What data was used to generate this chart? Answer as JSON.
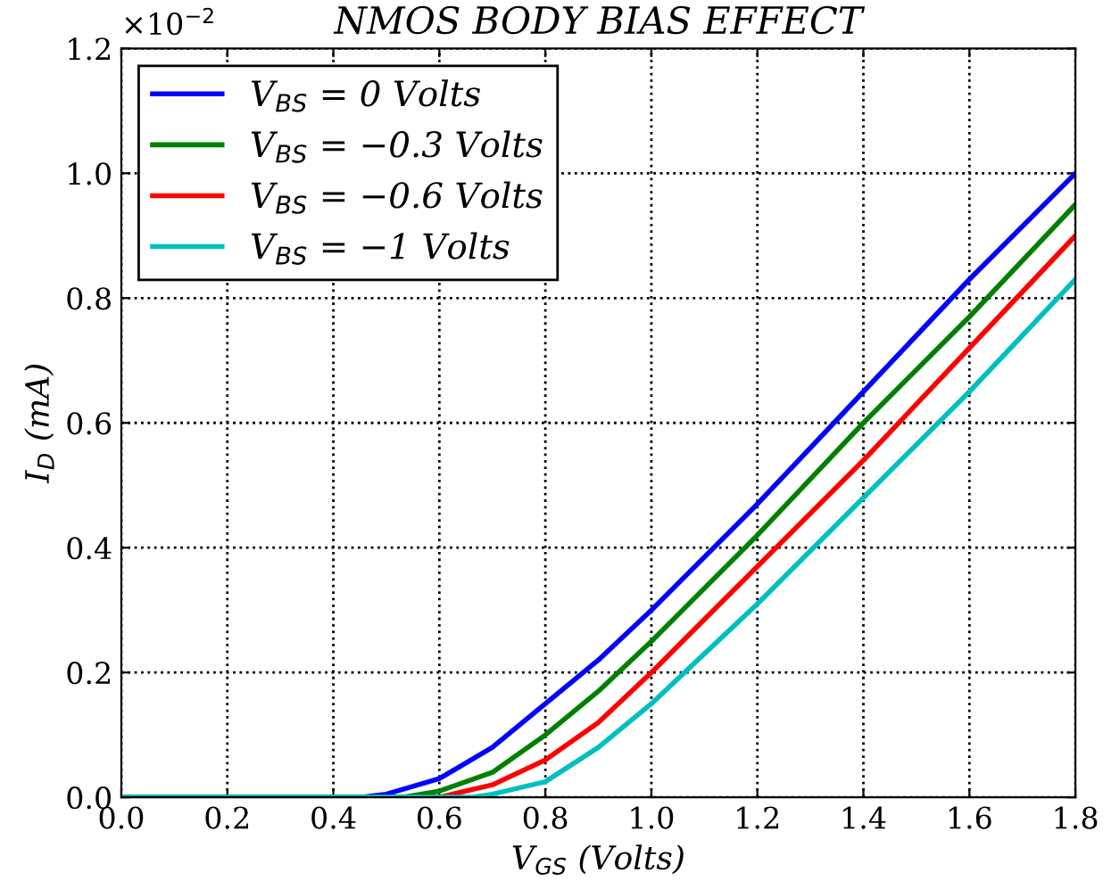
{
  "chart_data": {
    "type": "line",
    "title": "NMOS BODY BIAS EFFECT",
    "xlabel": "V$_{GS}$ (Volts)",
    "ylabel": "I$_{D}$ (mA)",
    "annotations": [
      "×10$^{−2}$"
    ],
    "series": [
      {
        "name": "V$_{BS}$ = 0 Volts",
        "color": "#0000ff",
        "x": [
          0,
          0.45,
          0.5,
          0.6,
          0.7,
          0.8,
          0.9,
          1.0,
          1.2,
          1.4,
          1.6,
          1.8
        ],
        "values": [
          0,
          0,
          0.005,
          0.03,
          0.08,
          0.15,
          0.22,
          0.3,
          0.47,
          0.65,
          0.83,
          1.0
        ]
      },
      {
        "name": "V$_{BS}$ = −0.3 Volts",
        "color": "#008000",
        "x": [
          0,
          0.53,
          0.6,
          0.7,
          0.8,
          0.9,
          1.0,
          1.2,
          1.4,
          1.6,
          1.8
        ],
        "values": [
          0,
          0,
          0.01,
          0.04,
          0.1,
          0.17,
          0.25,
          0.42,
          0.6,
          0.77,
          0.95
        ]
      },
      {
        "name": "V$_{BS}$ = −0.6 Volts",
        "color": "#ff0000",
        "x": [
          0,
          0.6,
          0.7,
          0.8,
          0.9,
          1.0,
          1.2,
          1.4,
          1.6,
          1.8
        ],
        "values": [
          0,
          0,
          0.02,
          0.06,
          0.12,
          0.2,
          0.37,
          0.54,
          0.72,
          0.9
        ]
      },
      {
        "name": "V$_{BS}$ = −1 Volts",
        "color": "#00bfbf",
        "x": [
          0,
          0.66,
          0.7,
          0.8,
          0.9,
          1.0,
          1.2,
          1.4,
          1.6,
          1.8
        ],
        "values": [
          0,
          0,
          0.005,
          0.025,
          0.08,
          0.15,
          0.31,
          0.48,
          0.65,
          0.83
        ]
      }
    ],
    "xlim": [
      0,
      1.8
    ],
    "ylim": [
      0,
      1.2
    ],
    "xticks": [
      {
        "value": 0,
        "label": "0.0"
      },
      0.2,
      0.4,
      0.6,
      0.8,
      {
        "value": 1,
        "label": "1.0"
      },
      1.2,
      1.4,
      1.6,
      1.8
    ],
    "yticks": [
      {
        "value": 0,
        "label": "0.0"
      },
      0.2,
      0.4,
      0.6,
      0.8,
      {
        "value": 1,
        "label": "1.0"
      },
      1.2
    ],
    "grid": true,
    "legend": "top left",
    "line_style": "solid",
    "marker": "none"
  }
}
